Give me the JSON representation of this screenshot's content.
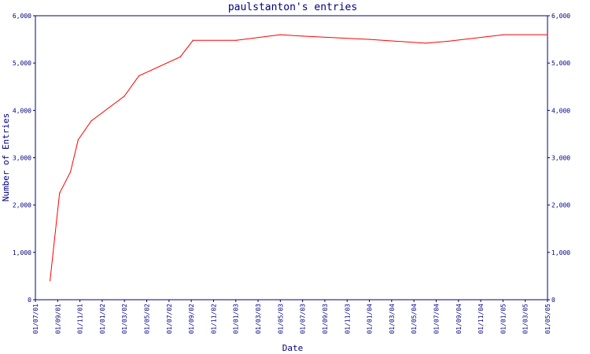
{
  "chart_data": {
    "type": "line",
    "title": "paulstanton's entries",
    "xlabel": "Date",
    "ylabel": "Number of Entries",
    "x_tick_labels": [
      "01/07/01",
      "01/09/01",
      "01/11/01",
      "01/01/02",
      "01/03/02",
      "01/05/02",
      "01/07/02",
      "01/09/02",
      "01/11/02",
      "01/01/03",
      "01/03/03",
      "01/05/03",
      "01/07/03",
      "01/09/03",
      "01/11/03",
      "01/01/04",
      "01/03/04",
      "01/05/04",
      "01/07/04",
      "01/09/04",
      "01/11/04",
      "01/01/05",
      "01/03/05",
      "01/05/05"
    ],
    "y_tick_labels": [
      "0",
      "1,000",
      "2,000",
      "3,000",
      "4,000",
      "5,000",
      "6,000"
    ],
    "ylim": [
      0,
      6000
    ],
    "xlim": [
      "2001-07-01",
      "2005-05-01"
    ],
    "grid": false,
    "line_color": "#ff0000",
    "axis_color": "#000080",
    "series": [
      {
        "x": [
          "2001-08-10",
          "2001-09-05",
          "2001-10-05",
          "2001-10-26",
          "2001-12-01",
          "2002-03-01",
          "2002-04-10",
          "2002-08-01",
          "2002-09-05",
          "2003-01-01",
          "2003-05-01",
          "2003-07-01",
          "2004-01-01",
          "2004-06-01",
          "2004-08-01",
          "2005-01-01",
          "2005-05-01"
        ],
        "values": [
          400,
          2250,
          2700,
          3380,
          3780,
          4300,
          4730,
          5130,
          5480,
          5480,
          5600,
          5570,
          5500,
          5420,
          5460,
          5600,
          5600
        ]
      }
    ]
  }
}
